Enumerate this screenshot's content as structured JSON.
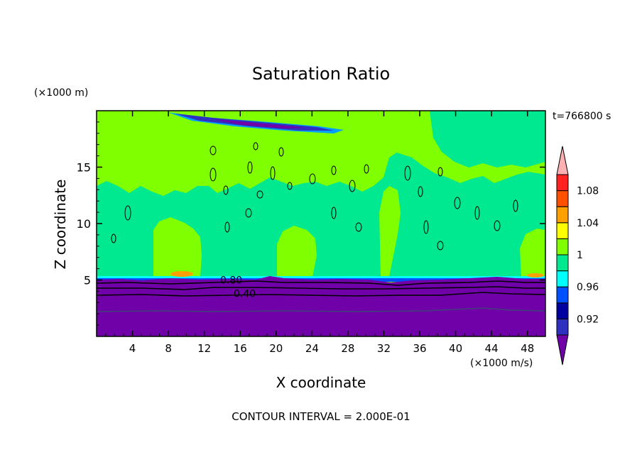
{
  "chart_data": {
    "type": "heatmap",
    "title": "Saturation Ratio",
    "xlabel": "X coordinate",
    "ylabel": "Z coordinate",
    "x_unit_label": "(×1000 m/s)",
    "y_unit_label": "(×1000 m)",
    "time_label": "t=766800 s",
    "footer": "CONTOUR INTERVAL = 2.000E-01",
    "xlim": [
      0,
      50
    ],
    "ylim": [
      0,
      20
    ],
    "x_ticks": [
      4,
      8,
      12,
      16,
      20,
      24,
      28,
      32,
      36,
      40,
      44,
      48
    ],
    "y_ticks": [
      5,
      10,
      15
    ],
    "contour_labels": [
      {
        "text": "0.80",
        "x": 15.0,
        "y": 4.7
      },
      {
        "text": "0.40",
        "x": 16.5,
        "y": 3.5
      }
    ],
    "colorbar": {
      "levels": [
        0.92,
        0.94,
        0.96,
        0.98,
        1.0,
        1.02,
        1.04,
        1.06,
        1.08,
        1.1
      ],
      "colors": [
        "#7000a8",
        "#3030c0",
        "#0000a0",
        "#0050ff",
        "#00ffff",
        "#00e890",
        "#80ff00",
        "#ffff00",
        "#ffa000",
        "#ff5000",
        "#ff2020",
        "#ffb0b0"
      ],
      "tick_labels": [
        "0.92",
        "0.96",
        "1",
        "1.04",
        "1.08"
      ]
    },
    "fields": {
      "background_value": 1.01,
      "boundary_layer_top_km": 5.0,
      "upper_stratiform_band": {
        "x_start": 8,
        "x_end": 27,
        "z": 18.7
      }
    }
  }
}
